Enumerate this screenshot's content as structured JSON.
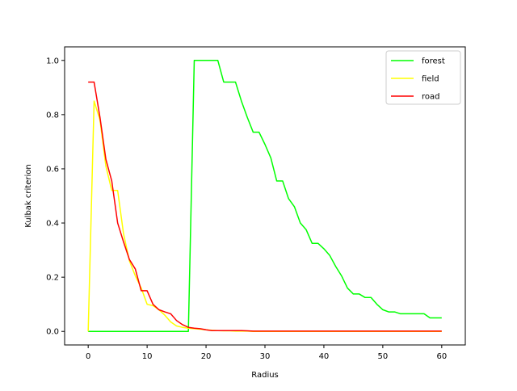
{
  "chart_data": {
    "type": "line",
    "title": "",
    "xlabel": "Radius",
    "ylabel": "Kulbak criterion",
    "xlim": [
      -4,
      64
    ],
    "ylim": [
      -0.05,
      1.05
    ],
    "xticks": [
      0,
      10,
      20,
      30,
      40,
      50,
      60
    ],
    "yticks": [
      0.0,
      0.2,
      0.4,
      0.6,
      0.8,
      1.0
    ],
    "xtick_labels": [
      "0",
      "10",
      "20",
      "30",
      "40",
      "50",
      "60"
    ],
    "ytick_labels": [
      "0.0",
      "0.2",
      "0.4",
      "0.6",
      "0.8",
      "1.0"
    ],
    "grid": false,
    "legend_position": "top-right",
    "x": [
      0,
      1,
      2,
      3,
      4,
      5,
      6,
      7,
      8,
      9,
      10,
      11,
      12,
      13,
      14,
      15,
      16,
      17,
      18,
      19,
      20,
      21,
      22,
      23,
      24,
      25,
      26,
      27,
      28,
      29,
      30,
      31,
      32,
      33,
      34,
      35,
      36,
      37,
      38,
      39,
      40,
      41,
      42,
      43,
      44,
      45,
      46,
      47,
      48,
      49,
      50,
      51,
      52,
      53,
      54,
      55,
      56,
      57,
      58,
      59,
      60
    ],
    "series": [
      {
        "name": "forest",
        "color": "#00ff00",
        "values": [
          0,
          0,
          0,
          0,
          0,
          0,
          0,
          0,
          0,
          0,
          0,
          0,
          0,
          0,
          0,
          0,
          0,
          0,
          1.0,
          1.0,
          1.0,
          1.0,
          1.0,
          0.92,
          0.92,
          0.92,
          0.85,
          0.79,
          0.735,
          0.735,
          0.69,
          0.64,
          0.555,
          0.555,
          0.49,
          0.46,
          0.4,
          0.375,
          0.325,
          0.325,
          0.305,
          0.28,
          0.24,
          0.205,
          0.16,
          0.138,
          0.138,
          0.125,
          0.125,
          0.1,
          0.08,
          0.072,
          0.072,
          0.065,
          0.065,
          0.065,
          0.065,
          0.065,
          0.05,
          0.05,
          0.05
        ]
      },
      {
        "name": "field",
        "color": "#ffff00",
        "values": [
          0,
          0.85,
          0.78,
          0.61,
          0.52,
          0.52,
          0.36,
          0.26,
          0.205,
          0.16,
          0.1,
          0.095,
          0.08,
          0.06,
          0.035,
          0.02,
          0.015,
          0.012,
          0.01,
          0.008,
          0.006,
          0.004,
          0.003,
          0.002,
          0.002,
          0.001,
          0.001,
          0.001,
          0,
          0,
          0,
          0,
          0,
          0,
          0,
          0,
          0,
          0,
          0,
          0,
          0,
          0,
          0,
          0,
          0,
          0,
          0,
          0,
          0,
          0,
          0,
          0,
          0,
          0,
          0,
          0,
          0,
          0,
          0,
          0,
          0
        ]
      },
      {
        "name": "road",
        "color": "#ff0000",
        "values": [
          0.92,
          0.92,
          0.79,
          0.635,
          0.555,
          0.4,
          0.33,
          0.265,
          0.23,
          0.15,
          0.15,
          0.1,
          0.08,
          0.072,
          0.065,
          0.04,
          0.025,
          0.015,
          0.012,
          0.01,
          0.006,
          0.003,
          0.003,
          0.003,
          0.003,
          0.003,
          0.003,
          0.002,
          0.001,
          0.001,
          0.001,
          0.001,
          0.001,
          0.001,
          0.001,
          0.001,
          0.001,
          0.001,
          0.001,
          0.001,
          0.001,
          0.001,
          0.001,
          0.001,
          0.001,
          0.001,
          0.001,
          0.001,
          0.001,
          0.001,
          0.001,
          0.001,
          0.001,
          0.001,
          0.001,
          0.001,
          0.001,
          0.001,
          0.001,
          0.001,
          0.001
        ]
      }
    ]
  }
}
